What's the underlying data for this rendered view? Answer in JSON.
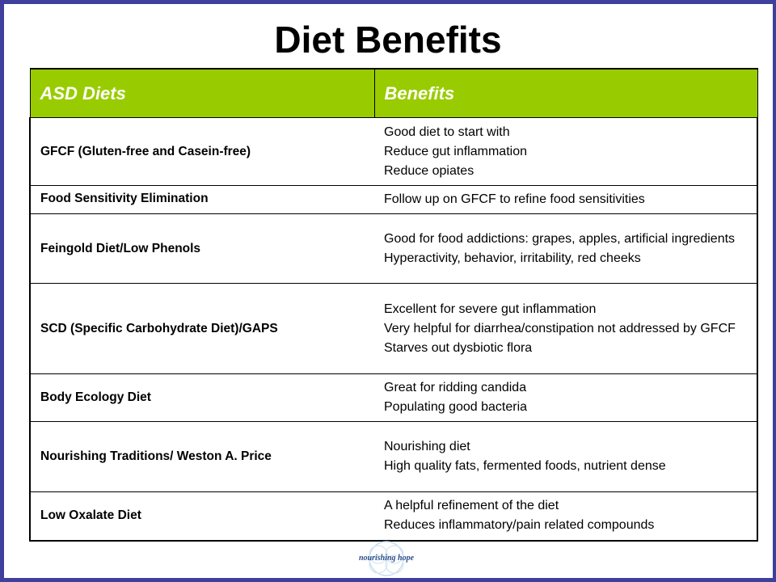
{
  "title": "Diet Benefits",
  "table": {
    "headers": [
      "ASD Diets",
      "Benefits"
    ],
    "rows": [
      {
        "diet": "GFCF (Gluten-free and Casein-free)",
        "benefits": [
          "Good diet to start with",
          "Reduce gut inflammation",
          "Reduce opiates"
        ]
      },
      {
        "diet": "Food Sensitivity Elimination",
        "benefits": [
          "Follow up on GFCF to refine food sensitivities"
        ]
      },
      {
        "diet": "Feingold Diet/Low Phenols",
        "benefits": [
          "Good for food addictions: grapes, apples, artificial ingredients",
          "Hyperactivity, behavior, irritability, red cheeks"
        ]
      },
      {
        "diet": "SCD (Specific Carbohydrate Diet)/GAPS",
        "benefits": [
          "Excellent for severe gut inflammation",
          "Very helpful for diarrhea/constipation not addressed by GFCF",
          "Starves out dysbiotic flora"
        ]
      },
      {
        "diet": "Body Ecology Diet",
        "benefits": [
          "Great for ridding candida",
          "Populating good bacteria"
        ]
      },
      {
        "diet": "Nourishing Traditions/ Weston A. Price",
        "benefits": [
          "Nourishing diet",
          "High quality fats, fermented foods, nutrient dense"
        ]
      },
      {
        "diet": "Low Oxalate Diet",
        "benefits": [
          "A helpful refinement of the diet",
          "Reduces inflammatory/pain related compounds"
        ]
      }
    ]
  },
  "logo": {
    "text": "nourishing hope"
  },
  "colors": {
    "border": "#3f3f9c",
    "header_bg": "#99cc00",
    "header_text": "#ffffff"
  }
}
